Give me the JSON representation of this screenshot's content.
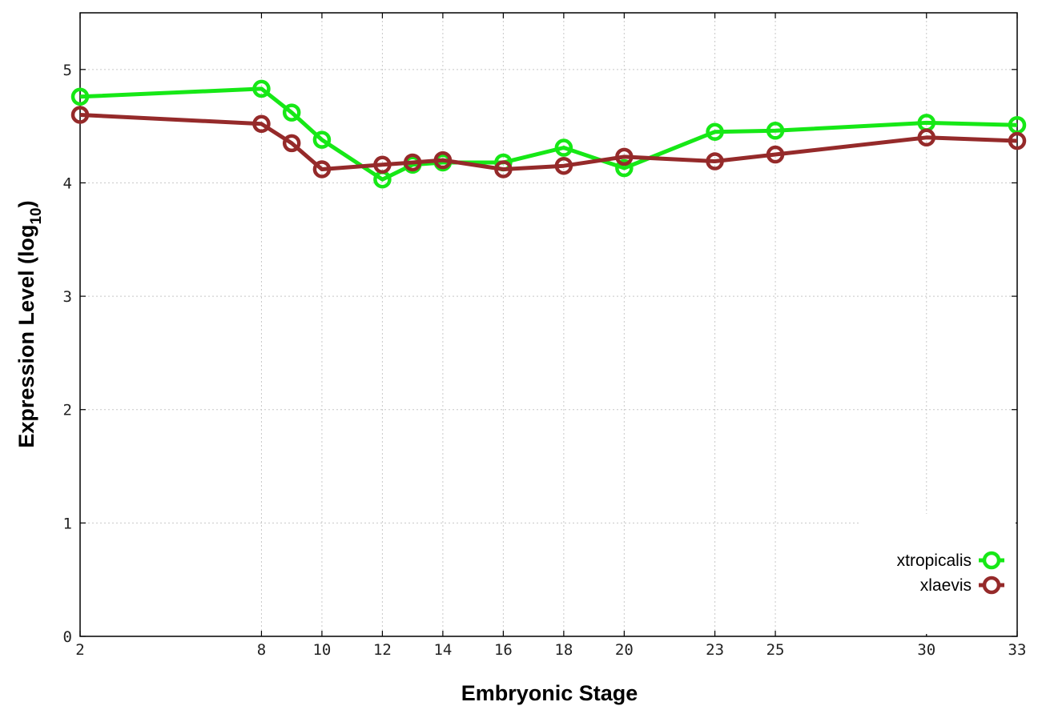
{
  "chart_data": {
    "type": "line",
    "xlabel": "Embryonic Stage",
    "ylabel_main": "Expression Level (log",
    "ylabel_sub": "10",
    "ylabel_close": ")",
    "x_ticks": [
      "2",
      "8",
      "10",
      "12",
      "14",
      "16",
      "18",
      "20",
      "23",
      "25",
      "30",
      "33"
    ],
    "y_ticks": [
      "0",
      "1",
      "2",
      "3",
      "4",
      "5"
    ],
    "xlim": [
      2,
      33
    ],
    "ylim": [
      0,
      5.5
    ],
    "grid": true,
    "legend_position": "bottom-right",
    "x": [
      2,
      8,
      9,
      10,
      12,
      13,
      14,
      16,
      18,
      20,
      23,
      25,
      30,
      33
    ],
    "series": [
      {
        "name": "xtropicalis",
        "color": "#16e816",
        "values": [
          4.76,
          4.83,
          4.62,
          4.38,
          4.03,
          4.16,
          4.18,
          4.18,
          4.31,
          4.13,
          4.45,
          4.46,
          4.53,
          4.51
        ]
      },
      {
        "name": "xlaevis",
        "color": "#952a2a",
        "values": [
          4.6,
          4.52,
          4.35,
          4.12,
          4.16,
          4.18,
          4.2,
          4.12,
          4.15,
          4.23,
          4.19,
          4.25,
          4.4,
          4.37
        ]
      }
    ]
  }
}
